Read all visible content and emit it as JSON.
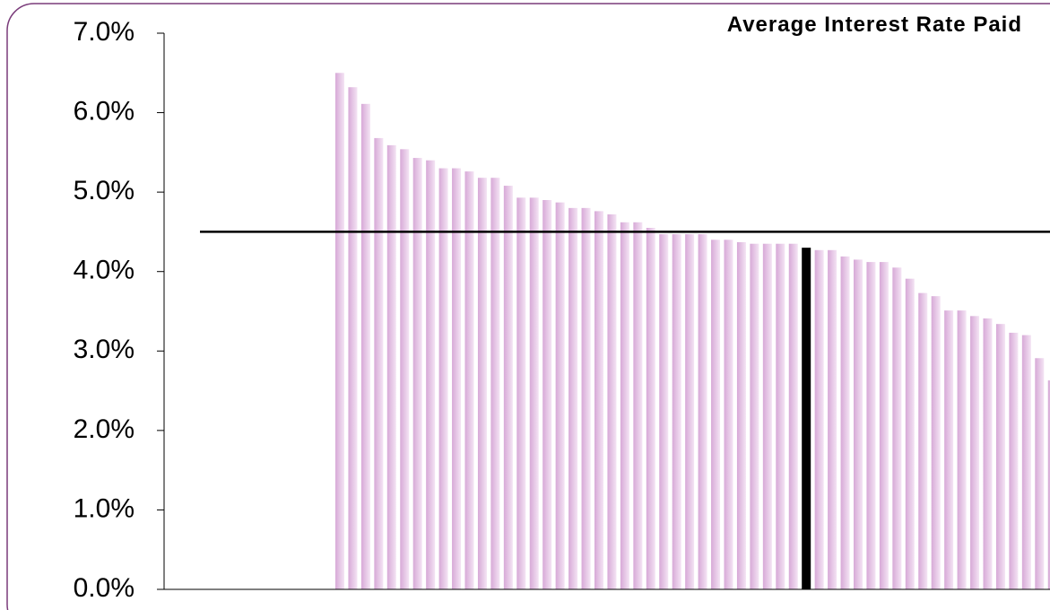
{
  "chart_data": {
    "type": "bar",
    "title": "Average Interest Rate Paid",
    "values": [
      6.5,
      6.32,
      6.11,
      5.68,
      5.59,
      5.54,
      5.43,
      5.4,
      5.3,
      5.3,
      5.26,
      5.18,
      5.18,
      5.08,
      4.93,
      4.93,
      4.9,
      4.87,
      4.8,
      4.8,
      4.76,
      4.72,
      4.62,
      4.62,
      4.55,
      4.47,
      4.47,
      4.47,
      4.47,
      4.4,
      4.4,
      4.37,
      4.35,
      4.35,
      4.35,
      4.35,
      4.3,
      4.27,
      4.27,
      4.19,
      4.15,
      4.12,
      4.12,
      4.05,
      3.91,
      3.73,
      3.69,
      3.51,
      3.51,
      3.44,
      3.41,
      3.34,
      3.23,
      3.2,
      2.91,
      2.63
    ],
    "color": "#dcb4dc",
    "highlight": {
      "index": 36,
      "color": "#000000"
    },
    "reference_line": 4.5,
    "ylim": [
      0,
      7
    ],
    "yticks": [
      {
        "value": 0,
        "label": "0.0%"
      },
      {
        "value": 1,
        "label": "1.0%"
      },
      {
        "value": 2,
        "label": "2.0%"
      },
      {
        "value": 3,
        "label": "3.0%"
      },
      {
        "value": 4,
        "label": "4.0%"
      },
      {
        "value": 5,
        "label": "5.0%"
      },
      {
        "value": 6,
        "label": "6.0%"
      },
      {
        "value": 7,
        "label": "7.0%"
      }
    ]
  }
}
